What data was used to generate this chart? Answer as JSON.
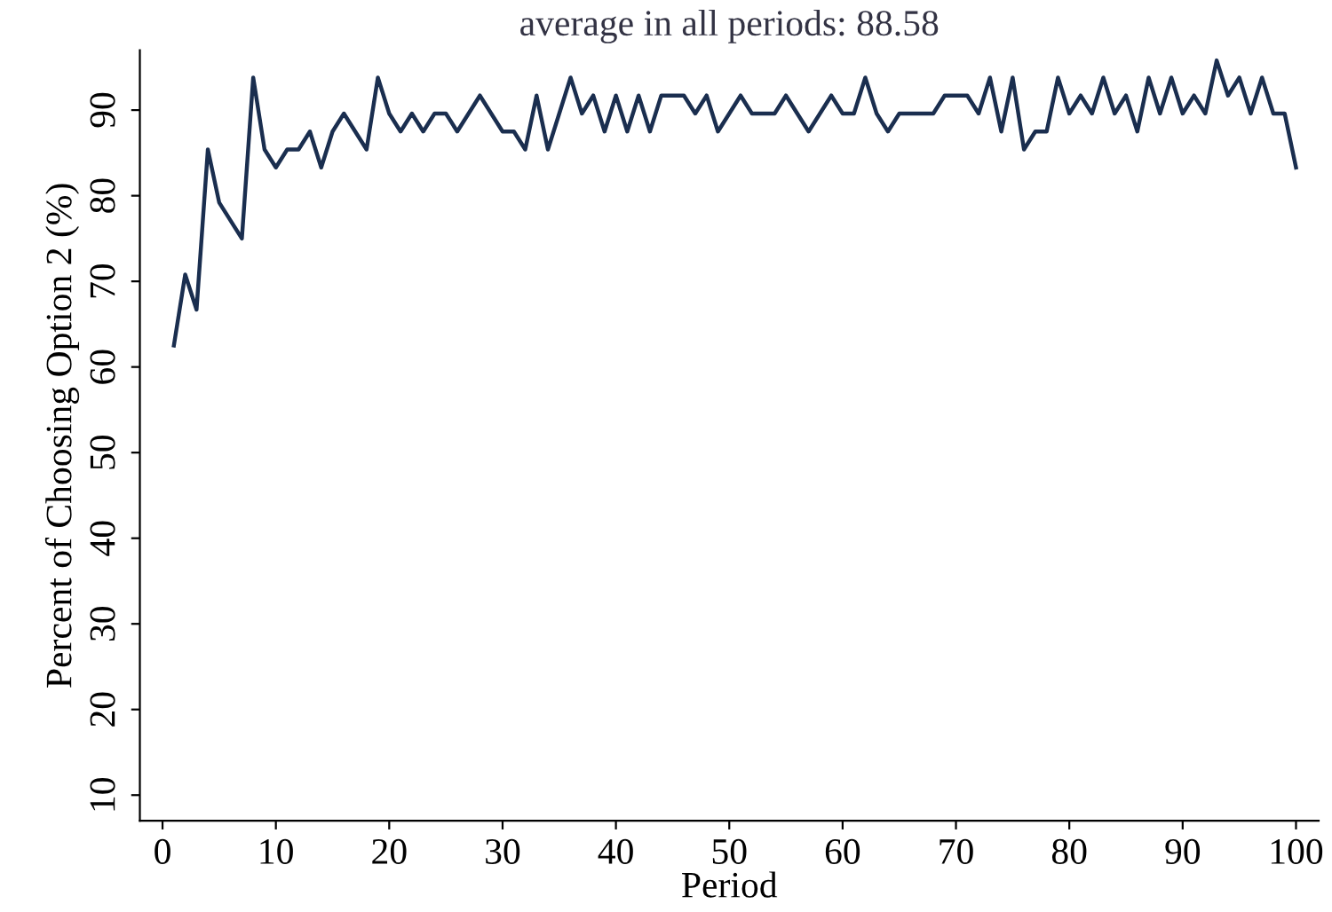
{
  "chart_data": {
    "type": "line",
    "title": "average in all periods: 88.58",
    "xlabel": "Period",
    "ylabel": "Percent of Choosing Option 2 (%)",
    "x": [
      1,
      2,
      3,
      4,
      5,
      6,
      7,
      8,
      9,
      10,
      11,
      12,
      13,
      14,
      15,
      16,
      17,
      18,
      19,
      20,
      21,
      22,
      23,
      24,
      25,
      26,
      27,
      28,
      29,
      30,
      31,
      32,
      33,
      34,
      35,
      36,
      37,
      38,
      39,
      40,
      41,
      42,
      43,
      44,
      45,
      46,
      47,
      48,
      49,
      50,
      51,
      52,
      53,
      54,
      55,
      56,
      57,
      58,
      59,
      60,
      61,
      62,
      63,
      64,
      65,
      66,
      67,
      68,
      69,
      70,
      71,
      72,
      73,
      74,
      75,
      76,
      77,
      78,
      79,
      80,
      81,
      82,
      83,
      84,
      85,
      86,
      87,
      88,
      89,
      90,
      91,
      92,
      93,
      94,
      95,
      96,
      97,
      98,
      99,
      100
    ],
    "series": [
      {
        "color": "#1a2e4f",
        "values": [
          62.5,
          70.8,
          66.7,
          85.4,
          79.2,
          77.1,
          75.0,
          93.8,
          85.4,
          83.3,
          85.4,
          85.4,
          87.5,
          83.3,
          87.5,
          89.6,
          87.5,
          85.4,
          93.8,
          89.6,
          87.5,
          89.6,
          87.5,
          89.6,
          89.6,
          87.5,
          89.6,
          91.7,
          89.6,
          87.5,
          87.5,
          85.4,
          91.7,
          85.4,
          89.6,
          93.8,
          89.6,
          91.7,
          87.5,
          91.7,
          87.5,
          91.7,
          87.5,
          91.7,
          91.7,
          91.7,
          89.6,
          91.7,
          87.5,
          89.6,
          91.7,
          89.6,
          89.6,
          89.6,
          91.7,
          89.6,
          87.5,
          89.6,
          91.7,
          89.6,
          89.6,
          93.8,
          89.6,
          87.5,
          89.6,
          89.6,
          89.6,
          89.6,
          91.7,
          91.7,
          91.7,
          89.6,
          93.8,
          87.5,
          93.8,
          85.4,
          87.5,
          87.5,
          93.8,
          89.6,
          91.7,
          89.6,
          93.8,
          89.6,
          91.7,
          87.5,
          93.8,
          89.6,
          93.8,
          89.6,
          91.7,
          89.6,
          95.8,
          91.7,
          93.8,
          89.6,
          93.8,
          89.6,
          89.6,
          83.3
        ]
      }
    ],
    "xlim": [
      -2,
      102
    ],
    "ylim": [
      7,
      97
    ],
    "xticks": [
      0,
      10,
      20,
      30,
      40,
      50,
      60,
      70,
      80,
      90,
      100
    ],
    "yticks": [
      10,
      20,
      30,
      40,
      50,
      60,
      70,
      80,
      90
    ],
    "grid": false,
    "legend": false,
    "marker": "none",
    "line_style": "solid"
  }
}
